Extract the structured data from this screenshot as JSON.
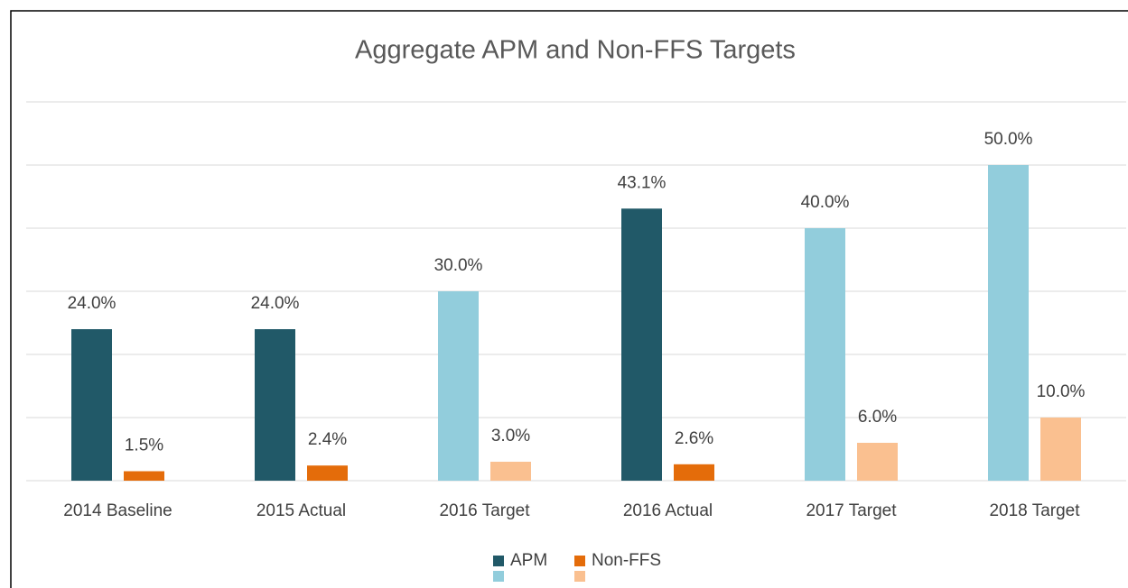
{
  "chart_data": {
    "type": "bar",
    "title": "Aggregate APM and Non-FFS Targets",
    "categories": [
      "2014 Baseline",
      "2015 Actual",
      "2016 Target",
      "2016 Actual",
      "2017 Target",
      "2018 Target"
    ],
    "series": [
      {
        "name": "APM",
        "colors": [
          "#215968",
          "#215968",
          "#92cddc",
          "#215968",
          "#92cddc",
          "#92cddc"
        ],
        "values": [
          24,
          24,
          30,
          43.1,
          40,
          50
        ],
        "value_labels": [
          "24.0%",
          "24.0%",
          "30.0%",
          "43.1%",
          "40.0%",
          "50.0%"
        ]
      },
      {
        "name": "Non-FFS",
        "colors": [
          "#e46c0a",
          "#e46c0a",
          "#fac090",
          "#e46c0a",
          "#fac090",
          "#fac090"
        ],
        "values": [
          1.5,
          2.4,
          3,
          2.6,
          6,
          10
        ],
        "value_labels": [
          "1.5%",
          "2.4%",
          "3.0%",
          "2.6%",
          "6.0%",
          "10.0%"
        ]
      }
    ],
    "ylim": [
      0,
      60
    ],
    "yticks": [
      0,
      10,
      20,
      30,
      40,
      50,
      60
    ],
    "grid": true,
    "legend": "bottom"
  }
}
